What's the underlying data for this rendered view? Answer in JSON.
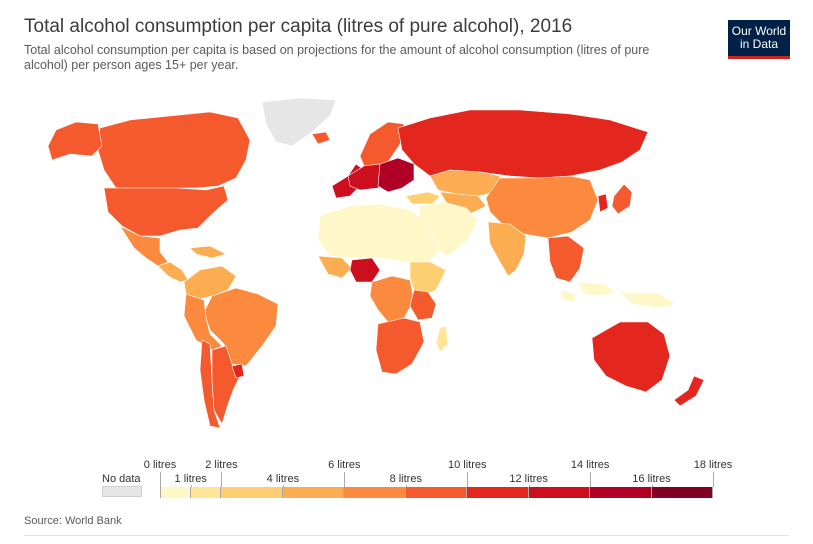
{
  "header": {
    "title": "Total alcohol consumption per capita (litres of pure alcohol), 2016",
    "subtitle": "Total alcohol consumption per capita is based on projections for the amount of alcohol consumption (litres of pure alcohol) per person ages 15+ per year."
  },
  "logo": {
    "line1": "Our World",
    "line2": "in Data",
    "bg_color": "#002147",
    "accent_color": "#ce261e"
  },
  "legend": {
    "no_data_label": "No data",
    "no_data_color": "#e6e6e6",
    "bins": [
      {
        "min": 0,
        "max": 1,
        "color": "#fef7c7"
      },
      {
        "min": 1,
        "max": 2,
        "color": "#fee597"
      },
      {
        "min": 2,
        "max": 4,
        "color": "#fecf70"
      },
      {
        "min": 4,
        "max": 6,
        "color": "#fdad51"
      },
      {
        "min": 6,
        "max": 8,
        "color": "#fb8a3e"
      },
      {
        "min": 8,
        "max": 10,
        "color": "#f45a2d"
      },
      {
        "min": 10,
        "max": 12,
        "color": "#e3271e"
      },
      {
        "min": 12,
        "max": 14,
        "color": "#cc0e1f"
      },
      {
        "min": 14,
        "max": 16,
        "color": "#b00026"
      },
      {
        "min": 16,
        "max": 18,
        "color": "#800026"
      }
    ],
    "ticks": [
      {
        "value": 0,
        "label": "0 litres",
        "row": "top"
      },
      {
        "value": 1,
        "label": "1 litres",
        "row": "bottom"
      },
      {
        "value": 2,
        "label": "2 litres",
        "row": "top"
      },
      {
        "value": 4,
        "label": "4 litres",
        "row": "bottom"
      },
      {
        "value": 6,
        "label": "6 litres",
        "row": "top"
      },
      {
        "value": 8,
        "label": "8 litres",
        "row": "bottom"
      },
      {
        "value": 10,
        "label": "10 litres",
        "row": "top"
      },
      {
        "value": 12,
        "label": "12 litres",
        "row": "bottom"
      },
      {
        "value": 14,
        "label": "14 litres",
        "row": "top"
      },
      {
        "value": 16,
        "label": "16 litres",
        "row": "bottom"
      },
      {
        "value": 18,
        "label": "18 litres",
        "row": "top"
      }
    ]
  },
  "footer": {
    "source": "Source: World Bank"
  },
  "map_data": {
    "regions": [
      {
        "name": "Greenland",
        "value": null
      },
      {
        "name": "Canada",
        "value": 8.9
      },
      {
        "name": "Alaska (United States)",
        "value": 9.8
      },
      {
        "name": "United States",
        "value": 9.8
      },
      {
        "name": "Mexico",
        "value": 6.5
      },
      {
        "name": "Central America & Caribbean",
        "value": 5.5
      },
      {
        "name": "Colombia & Venezuela",
        "value": 5.6
      },
      {
        "name": "Brazil",
        "value": 7.8
      },
      {
        "name": "Peru & Bolivia",
        "value": 6.3
      },
      {
        "name": "Chile",
        "value": 9.3
      },
      {
        "name": "Argentina",
        "value": 9.8
      },
      {
        "name": "Uruguay",
        "value": 10.8
      },
      {
        "name": "Iceland",
        "value": 9.1
      },
      {
        "name": "Scandinavia",
        "value": 9.0
      },
      {
        "name": "Western Europe",
        "value": 12.0
      },
      {
        "name": "France & Germany",
        "value": 12.8
      },
      {
        "name": "Central & Eastern Europe",
        "value": 14.0
      },
      {
        "name": "Russia",
        "value": 11.7
      },
      {
        "name": "Kazakhstan",
        "value": 5.0
      },
      {
        "name": "Central Asia",
        "value": 4.3
      },
      {
        "name": "Mongolia & China",
        "value": 7.2
      },
      {
        "name": "Korea",
        "value": 10.2
      },
      {
        "name": "Japan",
        "value": 8.0
      },
      {
        "name": "Turkey",
        "value": 2.0
      },
      {
        "name": "Middle East",
        "value": 0.5
      },
      {
        "name": "North Africa & Sahel",
        "value": 0.6
      },
      {
        "name": "West Africa",
        "value": 4.5
      },
      {
        "name": "Nigeria",
        "value": 13.4
      },
      {
        "name": "Central Africa",
        "value": 6.5
      },
      {
        "name": "East Africa",
        "value": 3.0
      },
      {
        "name": "Uganda & Tanzania",
        "value": 9.5
      },
      {
        "name": "Southern Africa",
        "value": 9.3
      },
      {
        "name": "Madagascar",
        "value": 1.7
      },
      {
        "name": "India",
        "value": 5.7
      },
      {
        "name": "Southeast Asia",
        "value": 8.3
      },
      {
        "name": "Indonesia",
        "value": 0.8
      },
      {
        "name": "Australia",
        "value": 10.6
      },
      {
        "name": "New Zealand",
        "value": 10.7
      }
    ]
  }
}
